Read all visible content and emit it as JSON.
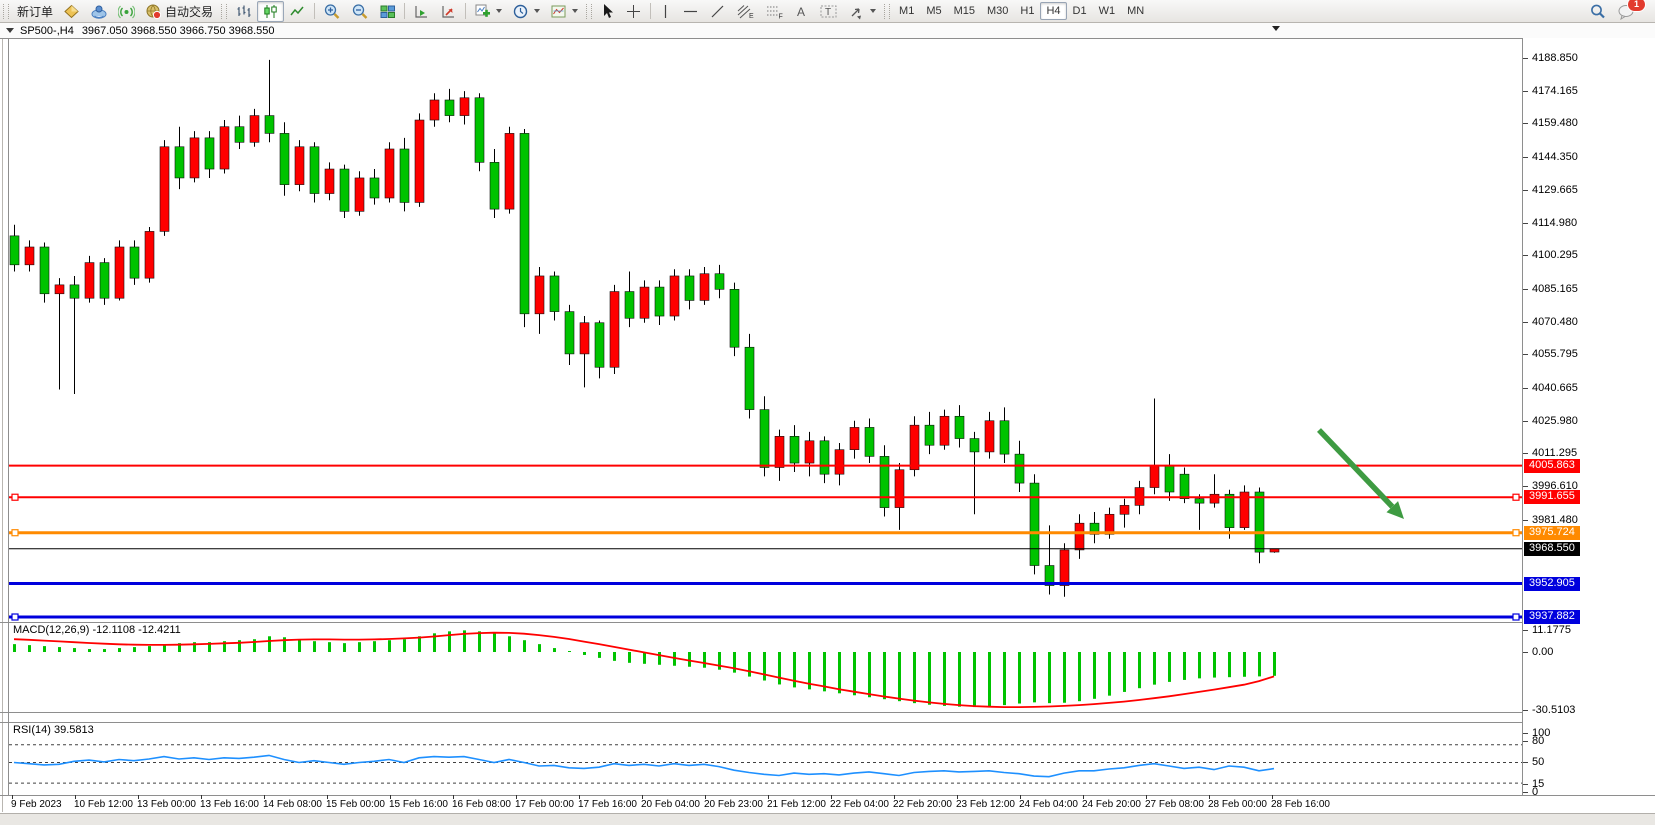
{
  "toolbar": {
    "new_order": "新订单",
    "auto_trading": "自动交易",
    "timeframes": [
      "M1",
      "M5",
      "M15",
      "M30",
      "H1",
      "H4",
      "D1",
      "W1",
      "MN"
    ],
    "active_timeframe": "H4",
    "notification_badge": "1",
    "drawing_tool_letters": {
      "channel": "E",
      "fibonacci": "F",
      "text": "A",
      "label": "T"
    }
  },
  "chart_title": {
    "symbol_period": "SP500-,H4",
    "ohlc": "3967.050 3968.550 3966.750 3968.550"
  },
  "price_axis": {
    "ticks": [
      "4188.850",
      "4174.165",
      "4159.480",
      "4144.350",
      "4129.665",
      "4114.980",
      "4100.295",
      "4085.165",
      "4070.480",
      "4055.795",
      "4040.665",
      "4025.980",
      "4011.295",
      "3996.610",
      "3981.480"
    ]
  },
  "time_axis": {
    "labels": [
      "9 Feb 2023",
      "10 Feb 12:00",
      "13 Feb 00:00",
      "13 Feb 16:00",
      "14 Feb 08:00",
      "15 Feb 00:00",
      "15 Feb 16:00",
      "16 Feb 08:00",
      "17 Feb 00:00",
      "17 Feb 16:00",
      "20 Feb 04:00",
      "20 Feb 23:00",
      "21 Feb 12:00",
      "22 Feb 04:00",
      "22 Feb 20:00",
      "23 Feb 12:00",
      "24 Feb 04:00",
      "24 Feb 20:00",
      "27 Feb 08:00",
      "28 Feb 00:00",
      "28 Feb 16:00"
    ]
  },
  "indicators": {
    "macd": {
      "name": "MACD(12,26,9)",
      "values": "-12.1108 -12.4211",
      "axis": [
        "11.1775",
        "0.00",
        "-30.5103"
      ]
    },
    "rsi": {
      "name": "RSI(14)",
      "value": "39.5813",
      "axis": [
        "100",
        "80",
        "50",
        "15",
        "0"
      ]
    }
  },
  "chart_data": {
    "type": "candlestick",
    "symbol": "SP500-",
    "period": "H4",
    "title": "SP500-,H4 3967.050 3968.550 3966.750 3968.550",
    "price_axis_top_tick": 4188.85,
    "price_axis_visible_range": [
      3935.0,
      4197.5
    ],
    "colors": {
      "down_candle": "#00c300",
      "up_candle": "#ff0000",
      "wick": "#000000",
      "macd_histogram": "#00c300",
      "macd_signal": "#ff0000",
      "rsi_line": "#1e90ff",
      "arrow": "#3e9b42"
    },
    "candles_ohlc": [
      [
        4109,
        4114,
        4093,
        4096
      ],
      [
        4096,
        4107,
        4093,
        4104
      ],
      [
        4104,
        4106,
        4079,
        4083
      ],
      [
        4083,
        4090,
        4040,
        4087
      ],
      [
        4087,
        4091,
        4038,
        4081
      ],
      [
        4081,
        4100,
        4079,
        4097
      ],
      [
        4097,
        4099,
        4078,
        4081
      ],
      [
        4081,
        4107,
        4080,
        4104
      ],
      [
        4104,
        4107,
        4087,
        4090
      ],
      [
        4090,
        4113,
        4088,
        4111
      ],
      [
        4111,
        4152,
        4109,
        4149
      ],
      [
        4149,
        4158,
        4130,
        4135
      ],
      [
        4135,
        4156,
        4133,
        4153
      ],
      [
        4153,
        4156,
        4135,
        4139
      ],
      [
        4139,
        4161,
        4137,
        4158
      ],
      [
        4158,
        4163,
        4148,
        4151
      ],
      [
        4151,
        4166,
        4149,
        4163
      ],
      [
        4163,
        4188,
        4151,
        4155
      ],
      [
        4155,
        4160,
        4127,
        4132
      ],
      [
        4132,
        4152,
        4129,
        4149
      ],
      [
        4149,
        4151,
        4124,
        4128
      ],
      [
        4128,
        4142,
        4125,
        4139
      ],
      [
        4139,
        4141,
        4117,
        4120
      ],
      [
        4120,
        4138,
        4118,
        4135
      ],
      [
        4135,
        4139,
        4123,
        4126
      ],
      [
        4126,
        4151,
        4124,
        4148
      ],
      [
        4148,
        4153,
        4120,
        4124
      ],
      [
        4124,
        4164,
        4122,
        4161
      ],
      [
        4161,
        4173,
        4158,
        4170
      ],
      [
        4170,
        4175,
        4160,
        4163
      ],
      [
        4163,
        4174,
        4159,
        4171
      ],
      [
        4171,
        4173,
        4138,
        4142
      ],
      [
        4142,
        4148,
        4117,
        4121
      ],
      [
        4121,
        4158,
        4119,
        4155
      ],
      [
        4155,
        4157,
        4068,
        4074
      ],
      [
        4074,
        4095,
        4065,
        4091
      ],
      [
        4091,
        4093,
        4071,
        4075
      ],
      [
        4075,
        4078,
        4051,
        4056
      ],
      [
        4056,
        4073,
        4041,
        4070
      ],
      [
        4070,
        4071,
        4045,
        4050
      ],
      [
        4050,
        4087,
        4047,
        4084
      ],
      [
        4084,
        4093,
        4068,
        4072
      ],
      [
        4072,
        4089,
        4070,
        4086
      ],
      [
        4086,
        4089,
        4069,
        4073
      ],
      [
        4073,
        4094,
        4071,
        4091
      ],
      [
        4091,
        4094,
        4076,
        4080
      ],
      [
        4080,
        4095,
        4078,
        4092
      ],
      [
        4092,
        4096,
        4081,
        4085
      ],
      [
        4085,
        4088,
        4055,
        4059
      ],
      [
        4059,
        4065,
        4027,
        4031
      ],
      [
        4031,
        4037,
        4001,
        4005
      ],
      [
        4005,
        4022,
        3999,
        4019
      ],
      [
        4019,
        4024,
        4003,
        4007
      ],
      [
        4007,
        4021,
        4001,
        4017
      ],
      [
        4017,
        4019,
        3998,
        4002
      ],
      [
        4002,
        4016,
        3997,
        4013
      ],
      [
        4013,
        4026,
        4009,
        4023
      ],
      [
        4023,
        4027,
        4007,
        4010
      ],
      [
        4010,
        4015,
        3983,
        3987
      ],
      [
        3987,
        4007,
        3977,
        4004
      ],
      [
        4004,
        4028,
        4001,
        4024
      ],
      [
        4024,
        4030,
        4011,
        4015
      ],
      [
        4015,
        4031,
        4013,
        4028
      ],
      [
        4028,
        4033,
        4014,
        4018
      ],
      [
        4018,
        4021,
        3984,
        4012
      ],
      [
        4012,
        4030,
        4009,
        4026
      ],
      [
        4026,
        4032,
        4007,
        4011
      ],
      [
        4011,
        4017,
        3994,
        3998
      ],
      [
        3998,
        4002,
        3957,
        3961
      ],
      [
        3961,
        3979,
        3948,
        3952
      ],
      [
        3952,
        3971,
        3947,
        3968
      ],
      [
        3968,
        3984,
        3964,
        3980
      ],
      [
        3980,
        3985,
        3971,
        3975
      ],
      [
        3975,
        3987,
        3973,
        3984
      ],
      [
        3984,
        3991,
        3978,
        3988
      ],
      [
        3988,
        3999,
        3984,
        3996
      ],
      [
        3996,
        4036,
        3993,
        4006
      ],
      [
        4006,
        4011,
        3990,
        3994
      ],
      [
        4002,
        4005,
        3989,
        3991
      ],
      [
        3991,
        3993,
        3977,
        3989
      ],
      [
        3989,
        4002,
        3987,
        3993
      ],
      [
        3993,
        3995,
        3973,
        3978
      ],
      [
        3978,
        3997,
        3977,
        3994
      ],
      [
        3994,
        3996,
        3962,
        3967
      ],
      [
        3967.05,
        3968.55,
        3966.75,
        3968.55
      ]
    ],
    "hlines": [
      {
        "price": 4005.863,
        "color": "#ff0000",
        "width": 2,
        "handles": false
      },
      {
        "price": 3991.655,
        "color": "#ff0000",
        "width": 2,
        "handles": true
      },
      {
        "price": 3975.724,
        "color": "#ff8a00",
        "width": 3,
        "handles": true
      },
      {
        "price": 3968.55,
        "color": "#000000",
        "width": 1,
        "handles": false,
        "role": "current-price"
      },
      {
        "price": 3952.905,
        "color": "#0000dd",
        "width": 3,
        "handles": false
      },
      {
        "price": 3937.882,
        "color": "#0000dd",
        "width": 3,
        "handles": true
      }
    ],
    "macd_range": [
      -30.5103,
      11.1775
    ],
    "macd_histogram": [
      4,
      3.5,
      3,
      2.5,
      2,
      1.5,
      1.5,
      2,
      2.5,
      3,
      4,
      4.5,
      5,
      5,
      5.5,
      6,
      6.5,
      8,
      7.5,
      6.5,
      5.5,
      5,
      4.5,
      5,
      5.5,
      6,
      6.5,
      8,
      9.5,
      10.5,
      11,
      10.5,
      9.5,
      8,
      6,
      4,
      2,
      0.5,
      -1.5,
      -3,
      -4.5,
      -5.5,
      -6,
      -6.5,
      -7,
      -7.5,
      -8,
      -9,
      -10.5,
      -12.5,
      -14.5,
      -16.5,
      -18,
      -19,
      -20,
      -21,
      -22,
      -23,
      -24,
      -25,
      -26,
      -26.8,
      -27.4,
      -27.8,
      -28,
      -27.6,
      -27,
      -26.2,
      -25.6,
      -26,
      -25.8,
      -25,
      -23.8,
      -22.2,
      -20.3,
      -18.4,
      -16.6,
      -15.2,
      -14.2,
      -13.4,
      -13,
      -12.8,
      -12.6,
      -12.4,
      -12.11
    ],
    "macd_signal": [
      6.5,
      6.2,
      5.8,
      5.4,
      5,
      4.6,
      4.2,
      3.9,
      3.7,
      3.6,
      3.6,
      3.7,
      3.9,
      4.1,
      4.4,
      4.7,
      5.1,
      5.6,
      6,
      6.3,
      6.4,
      6.4,
      6.3,
      6.3,
      6.4,
      6.6,
      6.9,
      7.3,
      7.9,
      8.6,
      9.2,
      9.6,
      9.8,
      9.7,
      9.3,
      8.6,
      7.7,
      6.6,
      5.3,
      4,
      2.6,
      1.2,
      -0.2,
      -1.6,
      -3,
      -4.3,
      -5.6,
      -6.9,
      -8.3,
      -9.8,
      -11.4,
      -13,
      -14.6,
      -16.1,
      -17.5,
      -18.9,
      -20.2,
      -21.4,
      -22.6,
      -23.7,
      -24.7,
      -25.6,
      -26.4,
      -27,
      -27.5,
      -27.8,
      -28,
      -28,
      -27.9,
      -27.7,
      -27.4,
      -27,
      -26.5,
      -25.9,
      -25.2,
      -24.4,
      -23.5,
      -22.5,
      -21.4,
      -20.3,
      -19.1,
      -17.9,
      -16.6,
      -14.8,
      -12.42
    ],
    "rsi_range": [
      0,
      100
    ],
    "rsi_levels": [
      80,
      50,
      15
    ],
    "rsi_values": [
      50,
      48,
      46,
      47,
      52,
      54,
      51,
      55,
      53,
      56,
      60,
      56,
      58,
      55,
      58,
      57,
      59,
      62,
      55,
      50,
      53,
      50,
      47,
      50,
      52,
      55,
      50,
      58,
      60,
      59,
      60,
      55,
      50,
      55,
      50,
      44,
      45,
      41,
      40,
      42,
      48,
      45,
      47,
      44,
      48,
      45,
      47,
      43,
      37,
      33,
      30,
      28,
      32,
      30,
      31,
      29,
      32,
      34,
      31,
      28,
      33,
      35,
      36,
      34,
      35,
      36,
      33,
      31,
      27,
      26,
      32,
      36,
      36,
      39,
      41,
      45,
      48,
      44,
      40,
      42,
      38,
      44,
      42,
      36,
      39.58
    ],
    "annotation_arrow": {
      "color": "#3e9b42",
      "from_price": 4013,
      "to_price": 3973,
      "note": "down-right arrow drawn over 28 Feb area"
    }
  }
}
